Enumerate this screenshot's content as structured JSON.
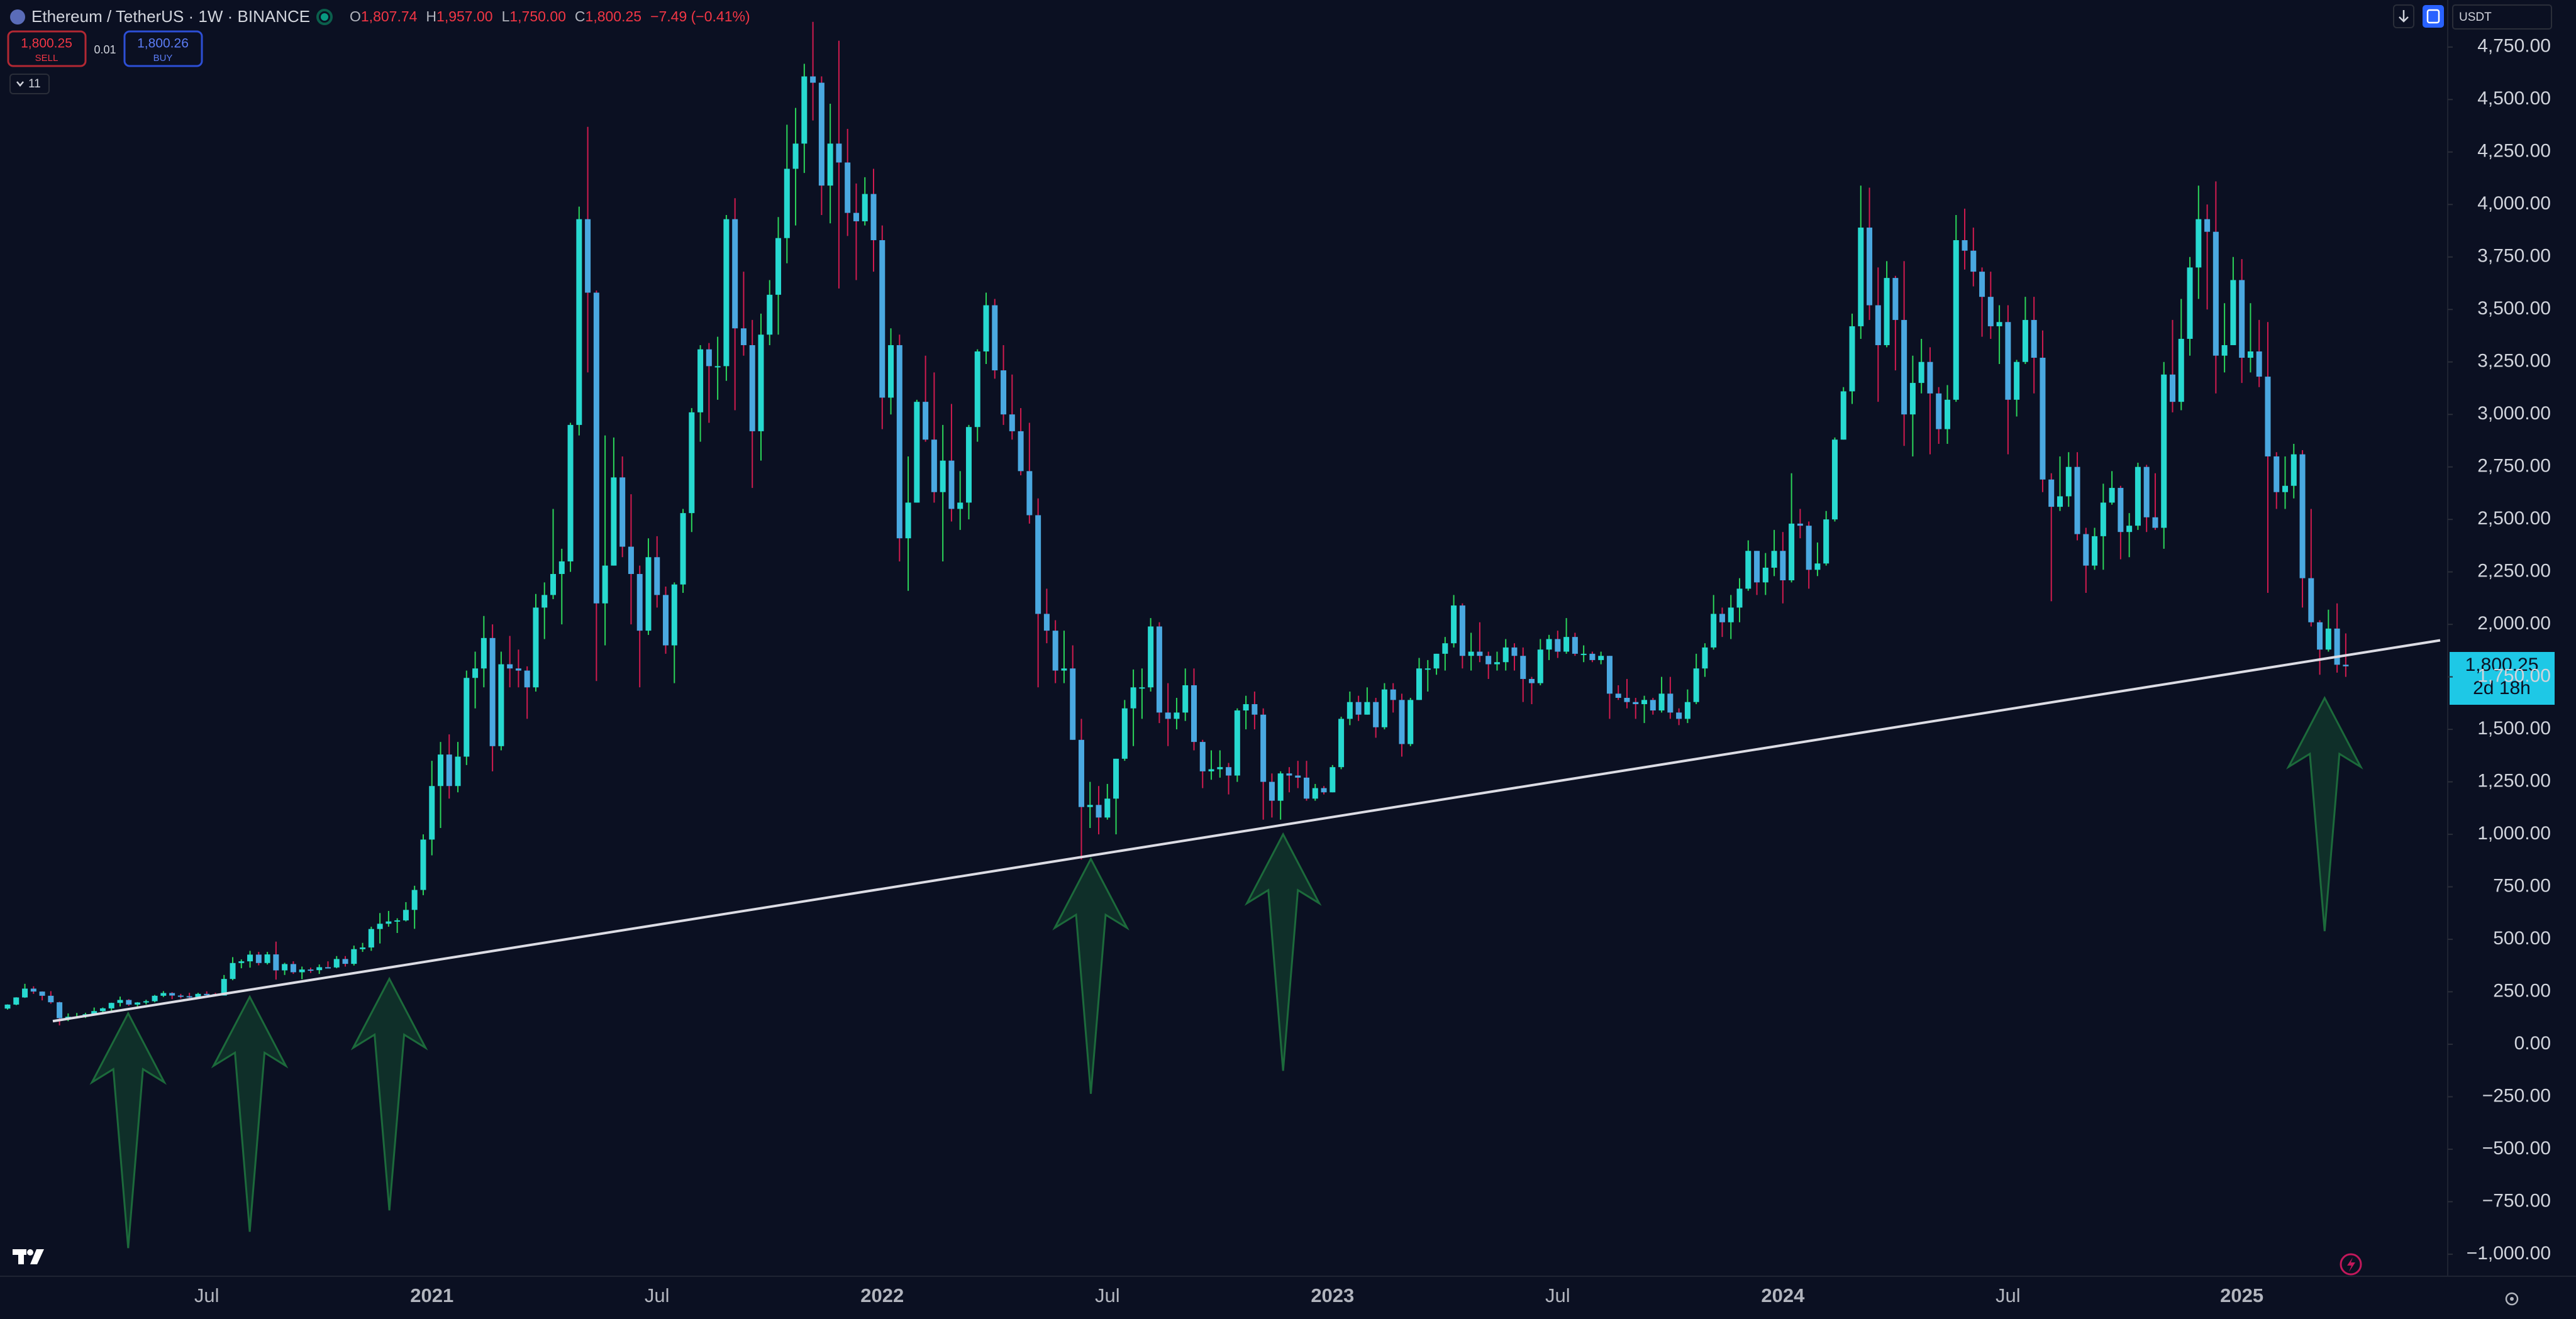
{
  "header": {
    "symbol": "Ethereum / TetherUS · 1W · BINANCE",
    "ohlc": [
      {
        "label": "O",
        "value": "1,807.74"
      },
      {
        "label": "H",
        "value": "1,957.00"
      },
      {
        "label": "L",
        "value": "1,750.00"
      },
      {
        "label": "C",
        "value": "1,800.25"
      }
    ],
    "change": "−7.49 (−0.41%)",
    "sell": {
      "price": "1,800.25",
      "label": "SELL"
    },
    "spread": "0.01",
    "buy": {
      "price": "1,800.26",
      "label": "BUY"
    },
    "indicators": "11",
    "currency": "USDT",
    "price_label": "1,800.25",
    "countdown": "2d 18h"
  },
  "chart_data": {
    "type": "candlestick",
    "up_color": "#27d9d0",
    "down_color": "#4aa8e0",
    "wick_up_color": "#2bd65a",
    "wick_down_color": "#d11b4f",
    "categories": [
      null,
      null,
      null,
      null,
      null,
      null,
      null,
      null,
      null,
      null,
      null,
      null,
      null,
      null,
      null,
      null,
      null,
      null,
      null,
      null,
      null,
      null,
      null,
      "Jul",
      null,
      null,
      null,
      null,
      null,
      null,
      null,
      null,
      null,
      null,
      null,
      null,
      null,
      null,
      null,
      null,
      null,
      null,
      null,
      null,
      null,
      null,
      null,
      null,
      null,
      "2021",
      null,
      null,
      null,
      null,
      null,
      null,
      null,
      null,
      null,
      null,
      null,
      null,
      null,
      null,
      null,
      null,
      null,
      null,
      null,
      null,
      null,
      null,
      null,
      null,
      null,
      "Jul",
      null,
      null,
      null,
      null,
      null,
      null,
      null,
      null,
      null,
      null,
      null,
      null,
      null,
      null,
      null,
      null,
      null,
      null,
      null,
      null,
      null,
      null,
      null,
      null,
      null,
      "2022",
      null,
      null,
      null,
      null,
      null,
      null,
      null,
      null,
      null,
      null,
      null,
      null,
      null,
      null,
      null,
      null,
      null,
      null,
      null,
      null,
      null,
      null,
      null,
      null,
      null,
      "Jul",
      null,
      null,
      null,
      null,
      null,
      null,
      null,
      null,
      null,
      null,
      null,
      null,
      null,
      null,
      null,
      null,
      null,
      null,
      null,
      null,
      null,
      null,
      null,
      null,
      null,
      "2023",
      null,
      null,
      null,
      null,
      null,
      null,
      null,
      null,
      null,
      null,
      null,
      null,
      null,
      null,
      null,
      null,
      null,
      null,
      null,
      null,
      null,
      null,
      null,
      null,
      null,
      "Jul",
      null,
      null,
      null,
      null,
      null,
      null,
      null,
      null,
      null,
      null,
      null,
      null,
      null,
      null,
      null,
      null,
      null,
      null,
      null,
      null,
      null,
      null,
      null,
      null,
      null,
      "2024",
      null,
      null,
      null,
      null,
      null,
      null,
      null,
      null,
      null,
      null,
      null,
      null,
      null,
      null,
      null,
      null,
      null,
      null,
      null,
      null,
      null,
      null,
      null,
      null,
      null,
      "Jul",
      null,
      null,
      null,
      null,
      null,
      null,
      null,
      null,
      null,
      null,
      null,
      null,
      null,
      null,
      null,
      null,
      null,
      null,
      null,
      null,
      null,
      null,
      null,
      null,
      null,
      null,
      "2025",
      null,
      null,
      null,
      null,
      null,
      null,
      null,
      null,
      null,
      null,
      null,
      null
    ],
    "open": [
      170,
      189,
      223,
      265,
      251,
      231,
      200,
      124,
      131,
      131,
      143,
      158,
      171,
      197,
      211,
      189,
      199,
      205,
      231,
      244,
      232,
      229,
      225,
      240,
      239,
      232,
      311,
      387,
      395,
      427,
      387,
      428,
      352,
      382,
      343,
      356,
      353,
      367,
      366,
      406,
      383,
      453,
      461,
      549,
      574,
      585,
      590,
      640,
      735,
      975,
      1230,
      1380,
      1230,
      1370,
      1745,
      1790,
      1935,
      1420,
      1810,
      1790,
      1780,
      1700,
      2080,
      2140,
      2240,
      2300,
      2950,
      3930,
      3580,
      2100,
      2280,
      2700,
      2370,
      2240,
      1970,
      2320,
      2140,
      1900,
      2190,
      2530,
      3010,
      3310,
      3230,
      3230,
      3930,
      3410,
      3330,
      2920,
      3380,
      3570,
      3840,
      4170,
      4290,
      4610,
      4580,
      4090,
      4290,
      4200,
      3960,
      3920,
      4050,
      3830,
      3080,
      3330,
      2410,
      2580,
      3060,
      2880,
      2630,
      2780,
      2550,
      2580,
      2940,
      3300,
      3520,
      3210,
      3000,
      2920,
      2730,
      2520,
      2050,
      1970,
      1780,
      1790,
      1450,
      1130,
      1140,
      1080,
      1170,
      1360,
      1600,
      1700,
      1700,
      1990,
      1580,
      1550,
      1580,
      1710,
      1440,
      1300,
      1310,
      1320,
      1280,
      1590,
      1620,
      1570,
      1250,
      1160,
      1290,
      1280,
      1270,
      1170,
      1220,
      1200,
      1320,
      1550,
      1630,
      1570,
      1630,
      1510,
      1690,
      1640,
      1430,
      1640,
      1790,
      1790,
      1860,
      1910,
      2090,
      1850,
      1870,
      1850,
      1810,
      1820,
      1890,
      1850,
      1740,
      1720,
      1880,
      1930,
      1870,
      1940,
      1860,
      1860,
      1830,
      1850,
      1670,
      1650,
      1630,
      1620,
      1640,
      1590,
      1670,
      1580,
      1550,
      1630,
      1790,
      1890,
      2050,
      2010,
      2080,
      2170,
      2350,
      2200,
      2270,
      2350,
      2210,
      2480,
      2470,
      2260,
      2290,
      2500,
      2880,
      3110,
      3420,
      3890,
      3520,
      3330,
      3650,
      3450,
      3000,
      3150,
      3250,
      3100,
      2930,
      3070,
      3830,
      3780,
      3680,
      3560,
      3420,
      3440,
      3070,
      3250,
      3450,
      3270,
      2690,
      2560,
      2610,
      2750,
      2430,
      2280,
      2420,
      2580,
      2650,
      2440,
      2470,
      2750,
      2510,
      2460,
      3190,
      3060,
      3360,
      3700,
      3930,
      3870,
      3280,
      3330,
      3640,
      3270,
      3300,
      3180,
      2800,
      2630,
      2660,
      2810,
      2220,
      2010,
      1880,
      1980,
      1807.74
    ],
    "high": [
      190,
      224,
      288,
      276,
      252,
      253,
      203,
      147,
      149,
      150,
      175,
      175,
      198,
      227,
      215,
      201,
      212,
      235,
      253,
      248,
      240,
      245,
      245,
      252,
      245,
      330,
      415,
      404,
      445,
      440,
      440,
      489,
      388,
      395,
      370,
      365,
      380,
      395,
      420,
      420,
      470,
      483,
      560,
      625,
      635,
      600,
      677,
      755,
      1000,
      1350,
      1440,
      1476,
      1440,
      1780,
      1870,
      2040,
      2000,
      1870,
      1945,
      1880,
      1800,
      2145,
      2200,
      2550,
      2360,
      2960,
      3990,
      4370,
      3590,
      2900,
      2890,
      2800,
      2620,
      2280,
      2410,
      2420,
      2180,
      2200,
      2550,
      3030,
      3330,
      3340,
      3370,
      3950,
      4030,
      3680,
      3450,
      3480,
      3640,
      3940,
      4380,
      4460,
      4670,
      4870,
      4610,
      4480,
      4780,
      4360,
      4100,
      4130,
      4170,
      3900,
      3410,
      3380,
      2800,
      3070,
      3280,
      3200,
      2950,
      3050,
      2730,
      2950,
      3310,
      3580,
      3550,
      3330,
      3190,
      3030,
      2960,
      2600,
      2170,
      2020,
      1970,
      1900,
      1550,
      1250,
      1230,
      1240,
      1360,
      1640,
      1785,
      1790,
      2030,
      2010,
      1720,
      1650,
      1790,
      1790,
      1450,
      1400,
      1400,
      1340,
      1600,
      1660,
      1680,
      1600,
      1290,
      1300,
      1320,
      1350,
      1350,
      1240,
      1230,
      1330,
      1560,
      1680,
      1660,
      1700,
      1650,
      1720,
      1720,
      1670,
      1650,
      1840,
      1830,
      1860,
      1940,
      2140,
      2100,
      1960,
      2010,
      1870,
      1870,
      1930,
      1910,
      1890,
      1750,
      1930,
      1950,
      1970,
      2030,
      1960,
      1900,
      1870,
      1870,
      1850,
      1710,
      1740,
      1650,
      1660,
      1650,
      1750,
      1750,
      1600,
      1690,
      1860,
      1910,
      2140,
      2080,
      2140,
      2220,
      2400,
      2350,
      2340,
      2450,
      2440,
      2720,
      2550,
      2490,
      2390,
      2540,
      2890,
      3130,
      3480,
      4090,
      4080,
      3700,
      3730,
      3660,
      3730,
      3280,
      3360,
      3320,
      3130,
      3140,
      3950,
      3980,
      3890,
      3700,
      3680,
      3520,
      3520,
      3260,
      3560,
      3560,
      3400,
      2720,
      2800,
      2820,
      2820,
      2460,
      2460,
      2670,
      2730,
      2660,
      2530,
      2770,
      2760,
      2720,
      3250,
      3450,
      3550,
      3750,
      4090,
      4000,
      4110,
      3530,
      3750,
      3740,
      3530,
      3450,
      3440,
      2820,
      2800,
      2860,
      2830,
      2550,
      2020,
      2070,
      2100,
      1957
    ],
    "low": [
      165,
      186,
      221,
      240,
      209,
      193,
      90,
      110,
      125,
      125,
      139,
      150,
      155,
      180,
      183,
      180,
      190,
      200,
      225,
      215,
      218,
      220,
      223,
      237,
      231,
      232,
      305,
      362,
      365,
      376,
      380,
      308,
      330,
      335,
      310,
      340,
      335,
      365,
      362,
      370,
      375,
      440,
      445,
      480,
      560,
      530,
      585,
      550,
      710,
      900,
      1030,
      1170,
      1200,
      1330,
      1600,
      1700,
      1300,
      1400,
      1700,
      1700,
      1550,
      1680,
      1930,
      2120,
      2000,
      2250,
      2900,
      3200,
      1730,
      1900,
      2280,
      2320,
      2000,
      1700,
      1950,
      2080,
      1860,
      1720,
      2150,
      2440,
      2870,
      2960,
      3070,
      3160,
      3020,
      3280,
      2650,
      2780,
      3330,
      3380,
      3720,
      3900,
      4150,
      4400,
      3950,
      3910,
      3600,
      3850,
      3640,
      3900,
      3680,
      2930,
      3000,
      2300,
      2160,
      2580,
      2870,
      2580,
      2300,
      2490,
      2450,
      2500,
      2870,
      3240,
      3170,
      2950,
      2880,
      2710,
      2480,
      1700,
      1910,
      1720,
      1720,
      1450,
      880,
      1030,
      1000,
      1070,
      1000,
      1350,
      1420,
      1550,
      1680,
      1530,
      1420,
      1500,
      1540,
      1400,
      1220,
      1260,
      1270,
      1190,
      1250,
      1500,
      1500,
      1070,
      1080,
      1070,
      1200,
      1220,
      1160,
      1160,
      1190,
      1200,
      1310,
      1520,
      1540,
      1570,
      1460,
      1500,
      1580,
      1370,
      1420,
      1640,
      1680,
      1760,
      1780,
      1890,
      1790,
      1780,
      1820,
      1740,
      1780,
      1780,
      1780,
      1630,
      1620,
      1710,
      1830,
      1840,
      1860,
      1850,
      1820,
      1820,
      1810,
      1550,
      1640,
      1600,
      1550,
      1530,
      1570,
      1580,
      1550,
      1520,
      1530,
      1620,
      1750,
      1880,
      1940,
      1930,
      2010,
      2160,
      2140,
      2140,
      2230,
      2100,
      2200,
      2410,
      2170,
      2230,
      2280,
      2490,
      2880,
      3050,
      3360,
      3450,
      3060,
      3320,
      3210,
      2850,
      2800,
      3100,
      2810,
      2860,
      2860,
      3060,
      3690,
      3610,
      3370,
      3360,
      3240,
      2810,
      2990,
      3240,
      3100,
      2630,
      2110,
      2540,
      2560,
      2400,
      2150,
      2260,
      2260,
      2570,
      2310,
      2320,
      2450,
      2440,
      2450,
      2360,
      3010,
      3020,
      3280,
      3550,
      3500,
      3100,
      3200,
      3330,
      3150,
      3200,
      3130,
      2150,
      2550,
      2550,
      2600,
      2080,
      1990,
      1760,
      1870,
      1770,
      1750
    ],
    "close": [
      189,
      223,
      265,
      251,
      231,
      200,
      124,
      131,
      131,
      143,
      158,
      171,
      197,
      211,
      189,
      199,
      205,
      231,
      244,
      232,
      229,
      225,
      240,
      239,
      232,
      311,
      387,
      395,
      427,
      387,
      428,
      352,
      382,
      343,
      356,
      353,
      367,
      366,
      406,
      383,
      453,
      461,
      549,
      574,
      585,
      590,
      640,
      735,
      975,
      1230,
      1380,
      1230,
      1370,
      1745,
      1790,
      1935,
      1420,
      1810,
      1790,
      1780,
      1700,
      2080,
      2140,
      2240,
      2300,
      2950,
      3930,
      3580,
      2100,
      2280,
      2700,
      2370,
      2240,
      1970,
      2320,
      2140,
      1900,
      2190,
      2530,
      3010,
      3310,
      3230,
      3230,
      3930,
      3410,
      3330,
      2920,
      3380,
      3570,
      3840,
      4170,
      4290,
      4610,
      4580,
      4090,
      4290,
      4200,
      3960,
      3920,
      4050,
      3830,
      3080,
      3330,
      2410,
      2580,
      3060,
      2880,
      2630,
      2780,
      2550,
      2580,
      2940,
      3300,
      3520,
      3210,
      3000,
      2920,
      2730,
      2520,
      2050,
      1970,
      1780,
      1790,
      1450,
      1130,
      1140,
      1080,
      1170,
      1360,
      1600,
      1700,
      1700,
      1990,
      1580,
      1550,
      1580,
      1710,
      1440,
      1300,
      1310,
      1320,
      1280,
      1590,
      1620,
      1570,
      1250,
      1160,
      1290,
      1280,
      1270,
      1170,
      1220,
      1200,
      1320,
      1550,
      1630,
      1570,
      1630,
      1510,
      1690,
      1640,
      1430,
      1640,
      1790,
      1790,
      1860,
      1910,
      2090,
      1850,
      1870,
      1850,
      1810,
      1820,
      1890,
      1850,
      1740,
      1720,
      1880,
      1930,
      1870,
      1940,
      1860,
      1860,
      1830,
      1850,
      1670,
      1650,
      1630,
      1620,
      1640,
      1590,
      1670,
      1580,
      1550,
      1630,
      1790,
      1890,
      2050,
      2010,
      2080,
      2170,
      2350,
      2200,
      2270,
      2350,
      2210,
      2480,
      2470,
      2260,
      2290,
      2500,
      2880,
      3110,
      3420,
      3890,
      3520,
      3330,
      3650,
      3450,
      3000,
      3150,
      3250,
      3100,
      2930,
      3070,
      3830,
      3780,
      3680,
      3560,
      3420,
      3440,
      3070,
      3250,
      3450,
      3270,
      2690,
      2560,
      2610,
      2750,
      2430,
      2280,
      2420,
      2580,
      2650,
      2440,
      2470,
      2750,
      2510,
      2460,
      3190,
      3060,
      3360,
      3700,
      3930,
      3870,
      3280,
      3330,
      3640,
      3270,
      3300,
      3180,
      2800,
      2630,
      2660,
      2810,
      2220,
      2010,
      1880,
      1980,
      1807.74,
      1800.25
    ],
    "trend_line": {
      "values": [
        110,
        1924
      ],
      "color": "#dcdce4"
    },
    "ylim": [
      -1105,
      4974
    ],
    "yticks": [
      {
        "value": 4750,
        "label": "4,750.00"
      },
      {
        "value": 4500,
        "label": "4,500.00"
      },
      {
        "value": 4250,
        "label": "4,250.00"
      },
      {
        "value": 4000,
        "label": "4,000.00"
      },
      {
        "value": 3750,
        "label": "3,750.00"
      },
      {
        "value": 3500,
        "label": "3,500.00"
      },
      {
        "value": 3250,
        "label": "3,250.00"
      },
      {
        "value": 3000,
        "label": "3,000.00"
      },
      {
        "value": 2750,
        "label": "2,750.00"
      },
      {
        "value": 2500,
        "label": "2,500.00"
      },
      {
        "value": 2250,
        "label": "2,250.00"
      },
      {
        "value": 2000,
        "label": "2,000.00"
      },
      {
        "value": 1750,
        "label": "1,750.00"
      },
      {
        "value": 1500,
        "label": "1,500.00"
      },
      {
        "value": 1250,
        "label": "1,250.00"
      },
      {
        "value": 1000,
        "label": "1,000.00"
      },
      {
        "value": 750,
        "label": "750.00"
      },
      {
        "value": 500,
        "label": "500.00"
      },
      {
        "value": 250,
        "label": "250.00"
      },
      {
        "value": 0,
        "label": "0.00"
      },
      {
        "value": -250,
        "label": "−250.00"
      },
      {
        "value": -500,
        "label": "−500.00"
      },
      {
        "value": -750,
        "label": "−750.00"
      },
      {
        "value": -1000,
        "label": "−1,000.00"
      }
    ],
    "grid": false
  }
}
